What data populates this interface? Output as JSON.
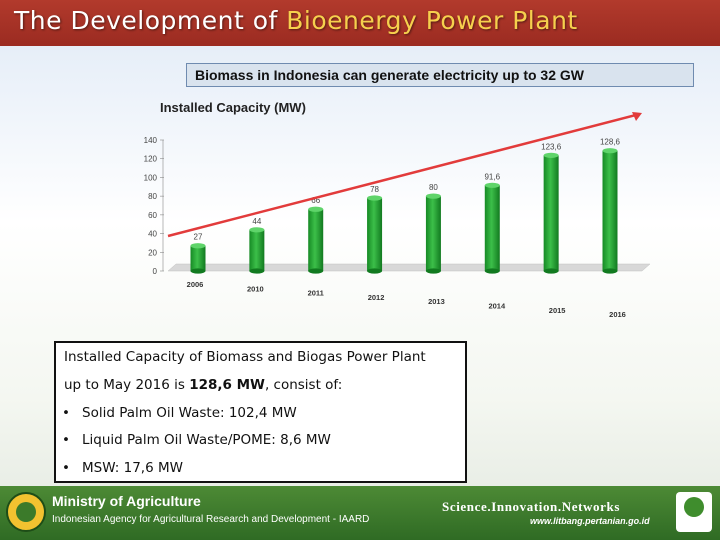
{
  "title_prefix": "The Development of",
  "title_highlight": "Bioenergy Power Plant",
  "subtitle": "Biomass in Indonesia can generate electricity up to 32 GW",
  "chart_data": {
    "type": "bar",
    "title": "Installed Capacity (MW)",
    "categories": [
      "2006",
      "2010",
      "2011",
      "2012",
      "2013",
      "2014",
      "2015",
      "2016"
    ],
    "values": [
      27,
      44,
      66,
      78,
      80,
      91.6,
      123.6,
      128.6
    ],
    "value_labels": [
      "27",
      "44",
      "66",
      "78",
      "80",
      "91,6",
      "123,6",
      "128,6"
    ],
    "y_ticks": [
      "0",
      "20",
      "40",
      "60",
      "80",
      "100",
      "120",
      "140"
    ],
    "ylim": [
      0,
      140
    ],
    "bar_color": "#1f9a2d",
    "trend_arrow_color": "#e23b3b"
  },
  "info": {
    "line1": "Installed Capacity of Biomass and Biogas Power Plant",
    "line2_prefix": "up to May 2016 is",
    "line2_bold": "128,6 MW",
    "line2_suffix": ", consist of:",
    "bullet_char": "•",
    "bullets": [
      "Solid Palm Oil Waste: 102,4 MW",
      "Liquid Palm Oil Waste/POME: 8,6 MW",
      "MSW: 17,6 MW"
    ]
  },
  "footer": {
    "ministry": "Ministry of Agriculture",
    "agency": "Indonesian Agency for Agricultural Research and Development - IAARD",
    "tagline": "Science.Innovation.Networks",
    "website": "www.litbang.pertanian.go.id"
  }
}
